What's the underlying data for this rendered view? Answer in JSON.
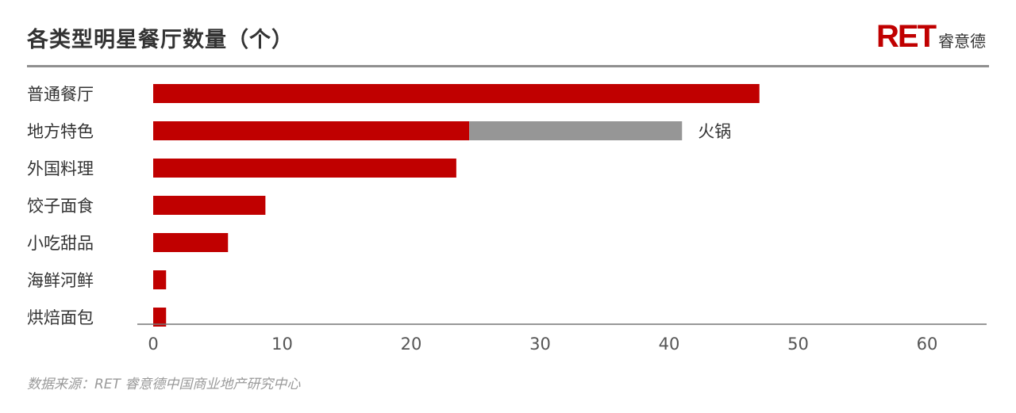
{
  "header": {
    "title": "各类型明星餐厅数量（个）",
    "logo_mark": "RET",
    "logo_text": "睿意德"
  },
  "footer": {
    "source": "数据来源：RET 睿意德中国商业地产研究中心"
  },
  "colors": {
    "primary": "#c00000",
    "secondary": "#969696",
    "text": "#333333"
  },
  "chart_data": {
    "type": "bar",
    "orientation": "horizontal",
    "stacked": true,
    "title": "各类型明星餐厅数量（个）",
    "categories": [
      "普通餐厅",
      "地方特色",
      "外国料理",
      "饺子面食",
      "小吃甜品",
      "海鲜河鲜",
      "烘焙面包"
    ],
    "series": [
      {
        "name": "",
        "color": "#c00000",
        "values": [
          47,
          24.5,
          23.5,
          8.7,
          5.8,
          1,
          1
        ]
      },
      {
        "name": "火锅",
        "color": "#969696",
        "values": [
          0,
          16.5,
          0,
          0,
          0,
          0,
          0
        ]
      }
    ],
    "annotations": [
      {
        "category": "地方特色",
        "text": "火锅"
      }
    ],
    "xlim": [
      0,
      65
    ],
    "xticks": [
      0,
      10,
      20,
      30,
      40,
      50,
      60
    ],
    "grid": false,
    "legend": "none"
  }
}
